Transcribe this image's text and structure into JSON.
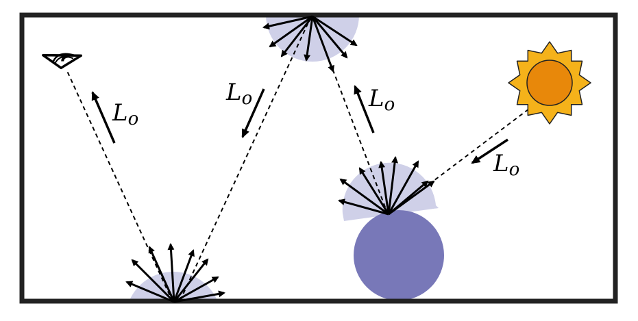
{
  "labels": {
    "radiance_symbol": "L",
    "radiance_subscript": "o"
  },
  "colors": {
    "scattering_lobe": "#cfd0e8",
    "sphere": "#7878b8",
    "sun_rays": "#f5b21a",
    "sun_disc": "#e8880a",
    "border": "#222222",
    "background": "#ffffff"
  },
  "icons": {
    "eye": "eye-icon",
    "sun": "sun-icon",
    "sphere": "sphere-object"
  }
}
